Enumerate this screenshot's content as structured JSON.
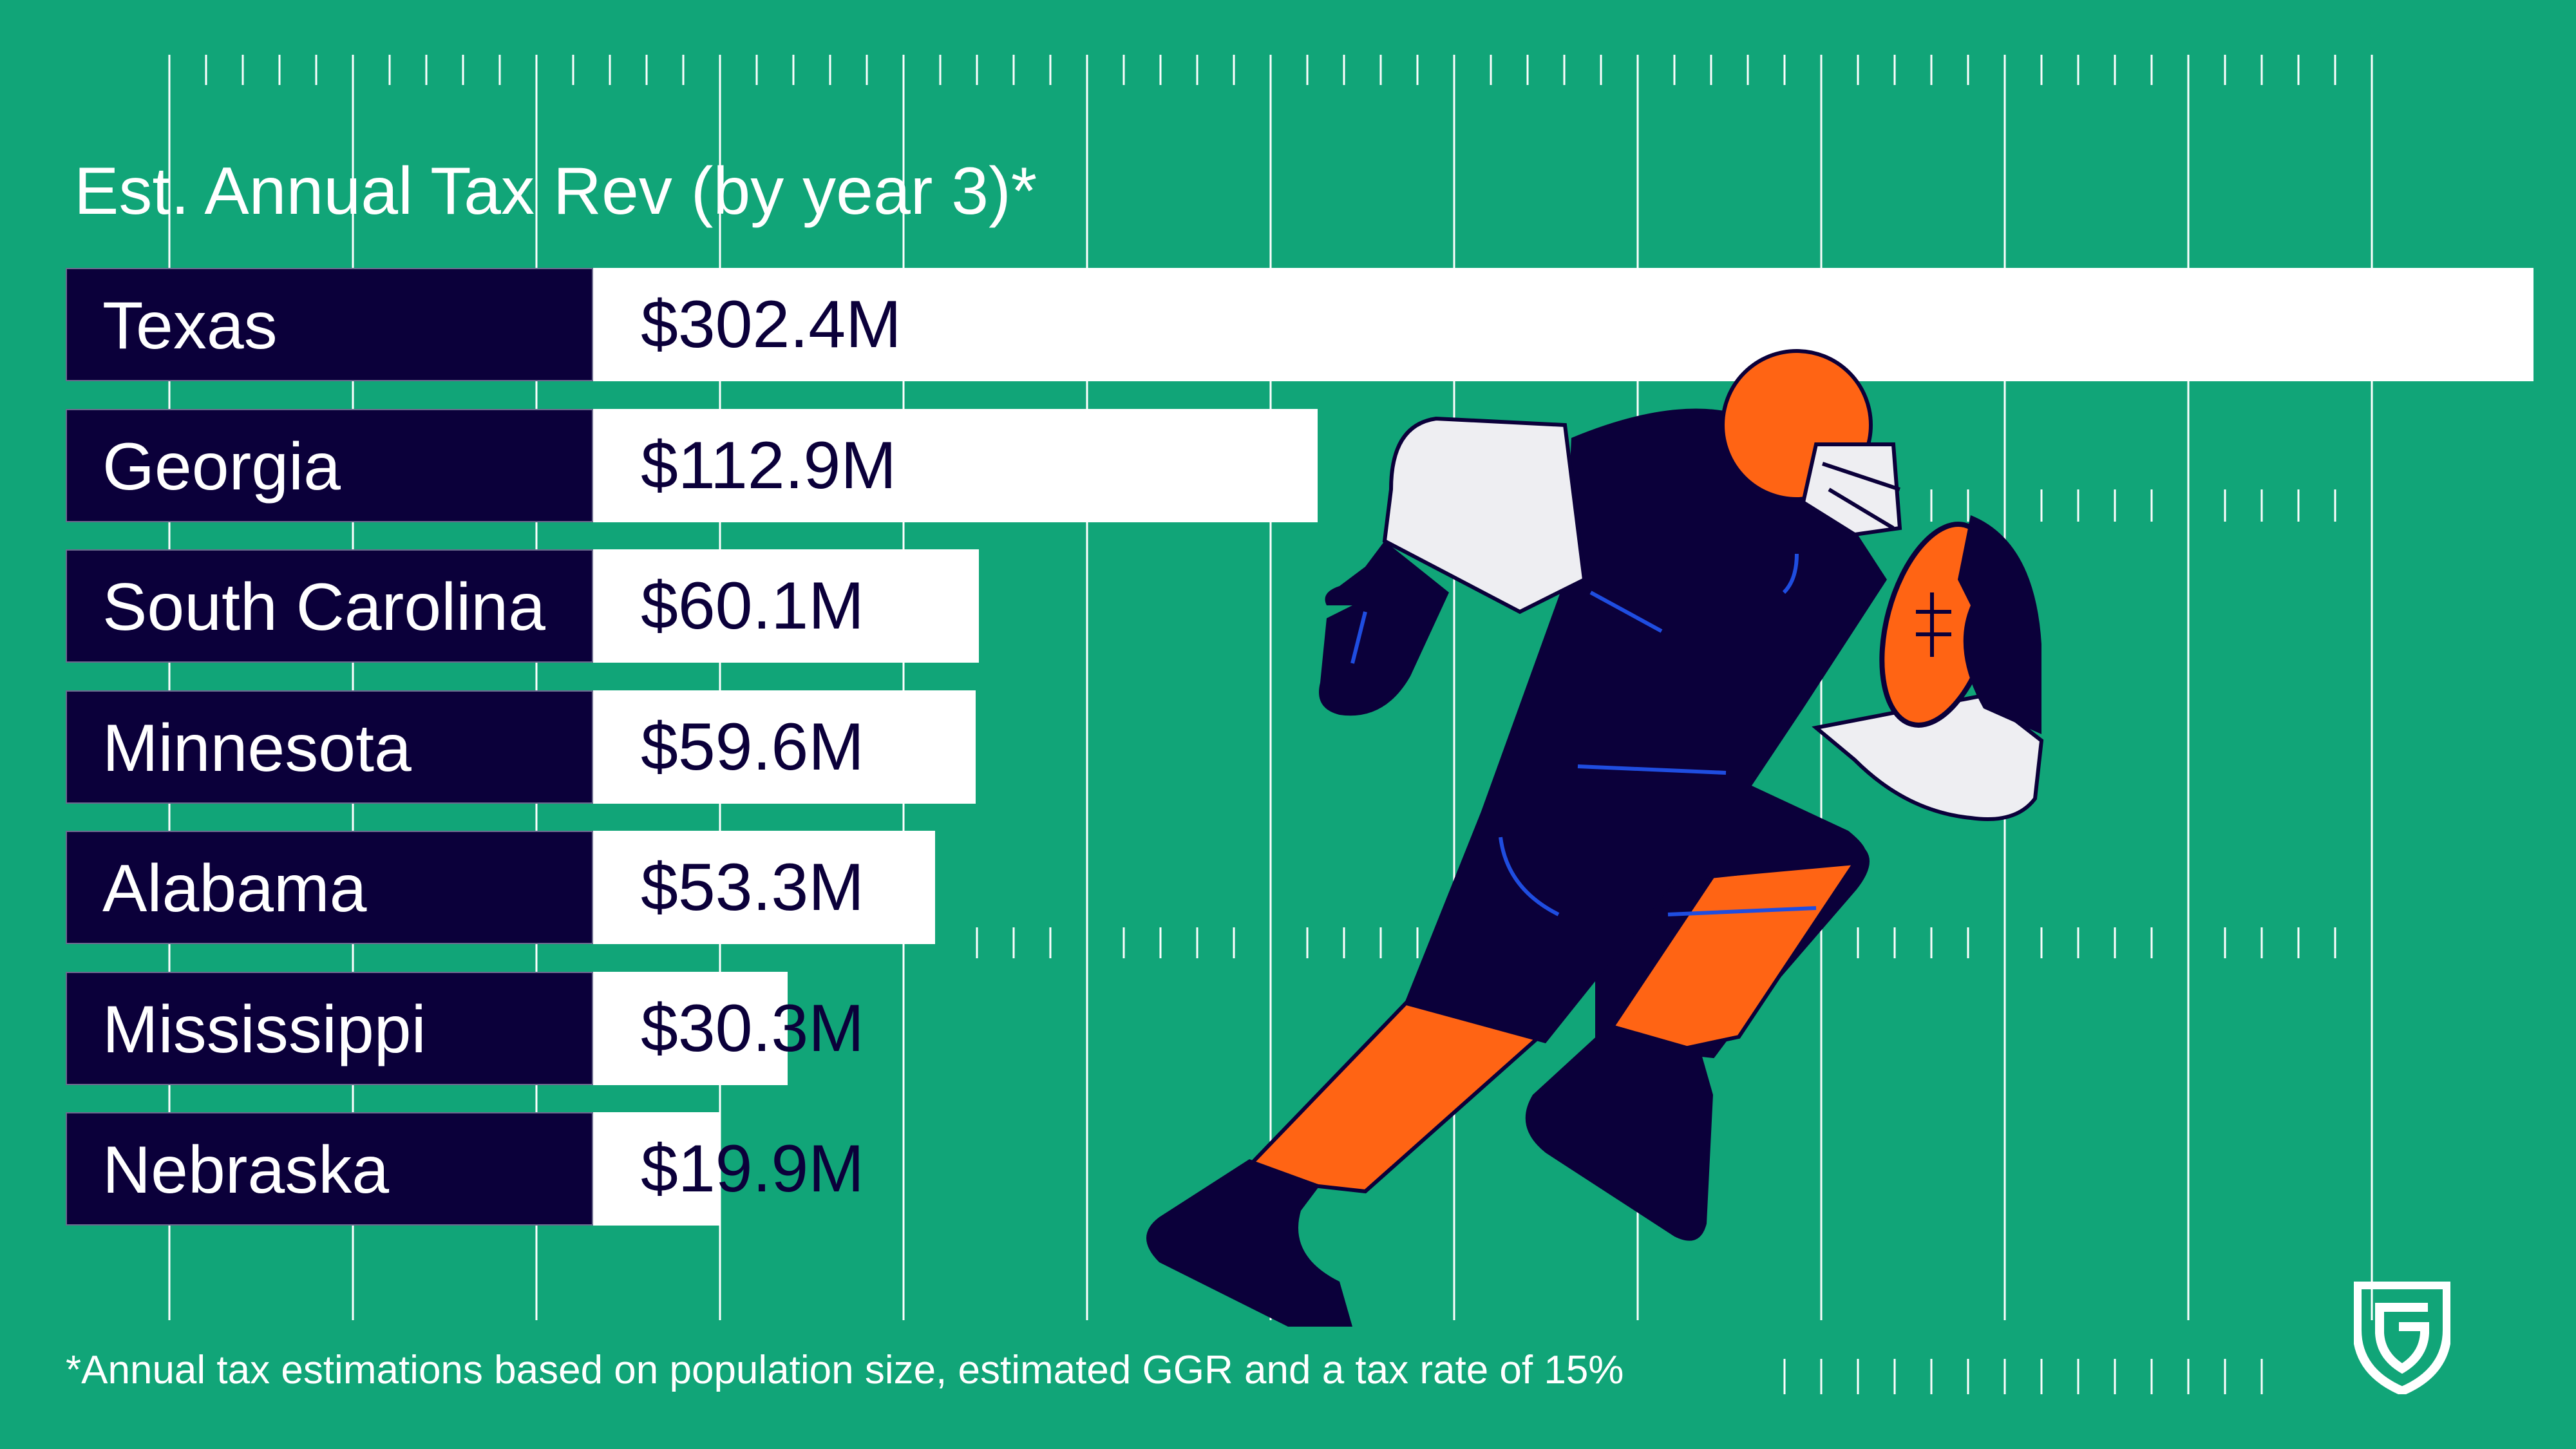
{
  "chart_data": {
    "type": "bar",
    "orientation": "horizontal",
    "title": "Est. Annual Tax Rev (by year 3)*",
    "categories": [
      "Texas",
      "Georgia",
      "South Carolina",
      "Minnesota",
      "Alabama",
      "Mississippi",
      "Nebraska"
    ],
    "values": [
      302.4,
      112.9,
      60.1,
      59.6,
      53.3,
      30.3,
      19.9
    ],
    "labels": [
      "$302.4M",
      "$112.9M",
      "$60.1M",
      "$59.6M",
      "$53.3M",
      "$30.3M",
      "$19.9M"
    ],
    "unit": "$M",
    "xlim": [
      0,
      302.4
    ],
    "footnote": "*Annual tax estimations based on population size, estimated GGR and a tax rate of 15%"
  },
  "colors": {
    "background": "#11a578",
    "navy": "#0b003a",
    "orange": "#ff6414",
    "white": "#ffffff",
    "light": "#eeeef2",
    "blue": "#1f4de0"
  },
  "logo": {
    "icon": "shield-g-logo-icon"
  }
}
